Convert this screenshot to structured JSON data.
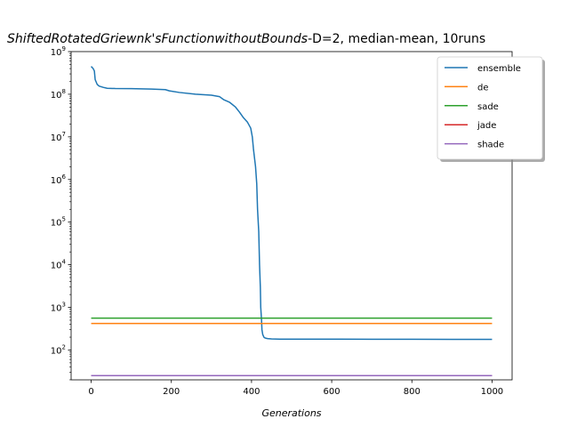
{
  "chart_data": {
    "type": "line",
    "title_italic": "ShiftedRotatedGriewnk'sFunctionwithoutBounds",
    "title_rest": "-D=2, median-mean, 10runs",
    "xlabel": "Generations",
    "ylabel": "",
    "yscale": "log",
    "xlim": [
      -50,
      1050
    ],
    "ylim_log10": [
      1.3,
      9.0
    ],
    "x_ticks": [
      0,
      200,
      400,
      600,
      800,
      1000
    ],
    "x_tick_labels": [
      "0",
      "200",
      "400",
      "600",
      "800",
      "1000"
    ],
    "y_ticks_exp": [
      2,
      3,
      4,
      5,
      6,
      7,
      8,
      9
    ],
    "y_tick_labels": [
      "2",
      "3",
      "4",
      "5",
      "6",
      "7",
      "8",
      "9"
    ],
    "y_tick_base": "10",
    "grid": false,
    "legend_position": "top-right",
    "series": [
      {
        "name": "ensemble",
        "color": "#1f77b4",
        "x": [
          0,
          5,
          8,
          10,
          15,
          20,
          30,
          40,
          60,
          100,
          150,
          185,
          195,
          220,
          260,
          300,
          320,
          330,
          345,
          360,
          370,
          380,
          390,
          398,
          402,
          405,
          410,
          413,
          415,
          418,
          420,
          422,
          423,
          425,
          426,
          428,
          429,
          430,
          431,
          432,
          435,
          440,
          450,
          470,
          500,
          600,
          700,
          800,
          900,
          1000
        ],
        "y": [
          450000000.0,
          400000000.0,
          350000000.0,
          220000000.0,
          170000000.0,
          155000000.0,
          145000000.0,
          138000000.0,
          136000000.0,
          135000000.0,
          132000000.0,
          128000000.0,
          120000000.0,
          110000000.0,
          100000000.0,
          95000000.0,
          88000000.0,
          75000000.0,
          65000000.0,
          50000000.0,
          38000000.0,
          28000000.0,
          22000000.0,
          16000000.0,
          10000000.0,
          5000000.0,
          2000000.0,
          800000.0,
          200000.0,
          60000.0,
          10000.0,
          3000.0,
          1000.0,
          500.0,
          300.0,
          230.0,
          220.0,
          210.0,
          200.0,
          195.0,
          190.0,
          185.0,
          182.0,
          180.0,
          180.0,
          180.0,
          179.0,
          179.0,
          178.0,
          178.0
        ]
      },
      {
        "name": "de",
        "color": "#ff7f0e",
        "x": [
          0,
          1000
        ],
        "y": [
          420,
          420
        ]
      },
      {
        "name": "sade",
        "color": "#2ca02c",
        "x": [
          0,
          1000
        ],
        "y": [
          560,
          560
        ]
      },
      {
        "name": "jade",
        "color": "#d62728",
        "x": [
          0,
          1000
        ],
        "y": [
          25,
          25
        ]
      },
      {
        "name": "shade",
        "color": "#9467bd",
        "x": [
          0,
          1000
        ],
        "y": [
          25,
          25
        ]
      }
    ]
  }
}
